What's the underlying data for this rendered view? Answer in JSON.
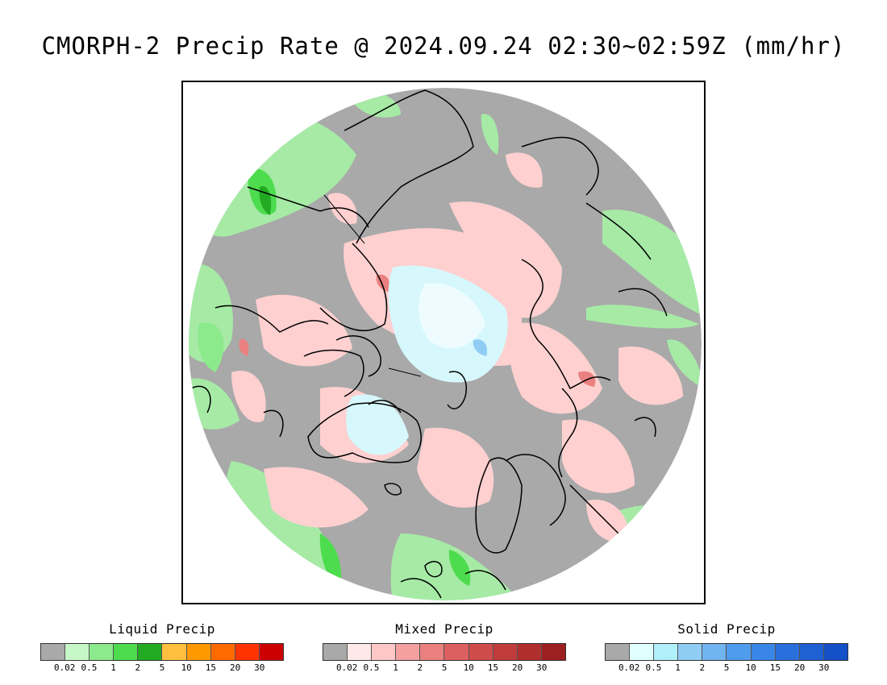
{
  "title": "CMORPH-2 Precip Rate @ 2024.09.24 02:30~02:59Z (mm/hr)",
  "map": {
    "background_color": "#a9a9a9",
    "coastline_color": "#000000"
  },
  "legends": [
    {
      "id": "liquid",
      "title": "Liquid Precip",
      "colors": [
        "#a9a9a9",
        "#c6f7c6",
        "#8ce98c",
        "#4ddc4d",
        "#22aa22",
        "#ffc040",
        "#ff9900",
        "#ff6a00",
        "#ff3300",
        "#cc0000"
      ],
      "ticks": [
        "0.02",
        "0.5",
        "1",
        "2",
        "5",
        "10",
        "15",
        "20",
        "30"
      ]
    },
    {
      "id": "mixed",
      "title": "Mixed Precip",
      "colors": [
        "#a9a9a9",
        "#ffe8e8",
        "#ffc8c8",
        "#f5a0a0",
        "#ea8080",
        "#dd6060",
        "#cf4c4c",
        "#c03c3c",
        "#b02e2e",
        "#9c2020"
      ],
      "ticks": [
        "0.02",
        "0.5",
        "1",
        "2",
        "5",
        "10",
        "15",
        "20",
        "30"
      ]
    },
    {
      "id": "solid",
      "title": "Solid Precip",
      "colors": [
        "#a9a9a9",
        "#e0ffff",
        "#b0f0fa",
        "#90cdf5",
        "#70b4f0",
        "#4f9cec",
        "#3a86e6",
        "#2a70dc",
        "#1f60d2",
        "#1450c8"
      ],
      "ticks": [
        "0.02",
        "0.5",
        "1",
        "2",
        "5",
        "10",
        "15",
        "20",
        "30"
      ]
    }
  ]
}
